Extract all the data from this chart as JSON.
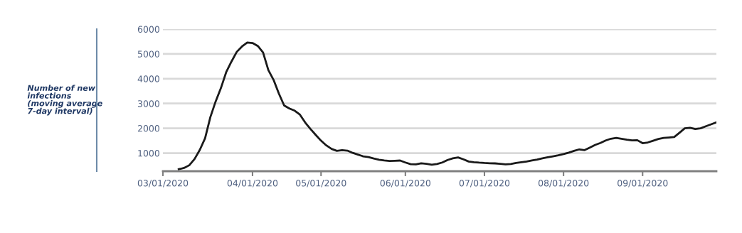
{
  "chart_data": {
    "type": "line",
    "ylabel": "Number of new\ninfections\n(moving average\n7-day interval)",
    "categories": [
      "03/01/2020",
      null,
      null,
      null,
      null,
      null,
      null,
      null,
      null,
      null,
      null,
      null,
      null,
      null,
      null,
      null,
      null,
      "04/01/2020",
      null,
      null,
      null,
      null,
      null,
      null,
      null,
      null,
      null,
      null,
      null,
      null,
      "05/01/2020",
      null,
      null,
      null,
      null,
      null,
      null,
      null,
      null,
      null,
      null,
      null,
      null,
      null,
      null,
      null,
      "06/01/2020",
      null,
      null,
      null,
      null,
      null,
      null,
      null,
      null,
      null,
      null,
      null,
      null,
      null,
      null,
      "07/01/2020",
      null,
      null,
      null,
      null,
      null,
      null,
      null,
      null,
      null,
      null,
      null,
      null,
      null,
      null,
      "08/01/2020",
      null,
      null,
      null,
      null,
      null,
      null,
      null,
      null,
      null,
      null,
      null,
      null,
      null,
      null,
      "09/01/2020",
      null,
      null,
      null,
      null,
      null,
      null,
      null,
      null,
      null,
      null,
      null,
      null,
      null,
      null
    ],
    "series": [
      {
        "color": "#1a1a1a",
        "values": [
          null,
          null,
          null,
          350,
          400,
          510,
          760,
          1130,
          1600,
          2450,
          3080,
          3620,
          4260,
          4690,
          5080,
          5300,
          5460,
          5440,
          5320,
          5060,
          4350,
          3950,
          3400,
          2920,
          2800,
          2710,
          2550,
          2230,
          1970,
          1730,
          1500,
          1310,
          1170,
          1090,
          1120,
          1100,
          1010,
          940,
          870,
          840,
          780,
          735,
          700,
          680,
          690,
          700,
          620,
          555,
          545,
          590,
          570,
          530,
          560,
          620,
          720,
          790,
          825,
          750,
          660,
          635,
          615,
          600,
          590,
          585,
          570,
          545,
          560,
          600,
          630,
          660,
          705,
          740,
          790,
          830,
          870,
          910,
          960,
          1020,
          1090,
          1150,
          1120,
          1225,
          1330,
          1410,
          1510,
          1580,
          1610,
          1580,
          1540,
          1510,
          1520,
          1400,
          1430,
          1500,
          1570,
          1610,
          1630,
          1650,
          1820,
          2000,
          2020,
          1970,
          2000,
          2080,
          2160,
          2240
        ]
      }
    ],
    "ylim": [
      270,
      6000
    ],
    "yticks": [
      1000,
      2000,
      3000,
      4000,
      5000,
      6000
    ],
    "grid": "y",
    "marker": "none",
    "line_style": "solid",
    "legend": false
  }
}
